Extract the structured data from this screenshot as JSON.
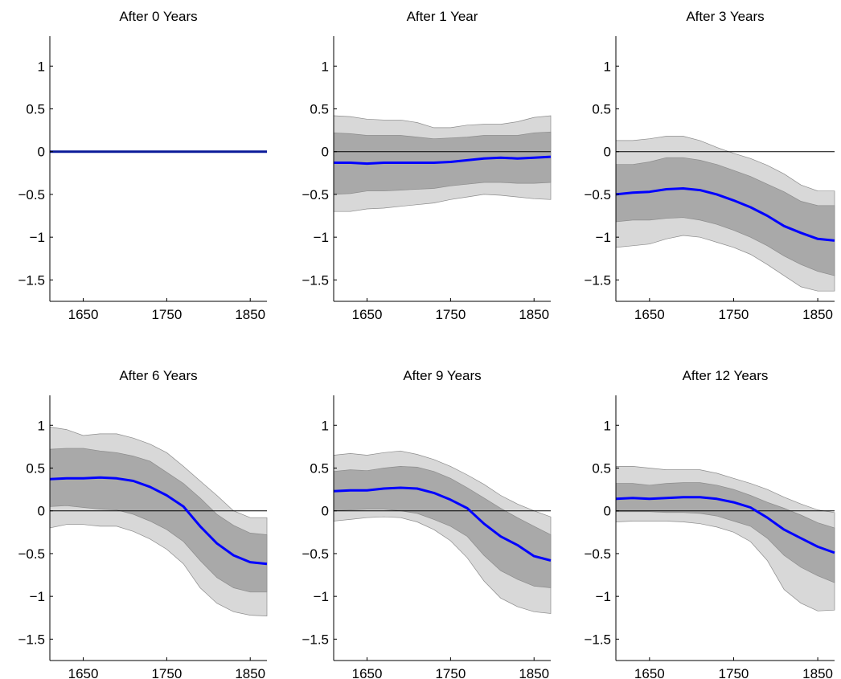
{
  "chart_data": [
    {
      "type": "area",
      "title": "After 0 Years",
      "xlim": [
        1610,
        1870
      ],
      "ylim": [
        -1.75,
        1.35
      ],
      "yticks": [
        -1.5,
        -1,
        -0.5,
        0,
        0.5,
        1
      ],
      "ytick_labels": [
        "−1.5",
        "−1",
        "−0.5",
        "0",
        "0.5",
        "1"
      ],
      "xticks": [
        1650,
        1750,
        1850
      ],
      "xtick_labels": [
        "1650",
        "1750",
        "1850"
      ],
      "zero_line": false,
      "colors": {
        "median": "#0000ff",
        "inner_band": "#a9a9a9",
        "outer_band": "#d8d8d8",
        "zero_line": "#000000"
      },
      "x": [
        1610,
        1870
      ],
      "median": [
        0,
        0
      ],
      "inner_lower": [
        0,
        0
      ],
      "inner_upper": [
        0,
        0
      ],
      "outer_lower": [
        0,
        0
      ],
      "outer_upper": [
        0,
        0
      ]
    },
    {
      "type": "area",
      "title": "After 1 Year",
      "xlim": [
        1610,
        1870
      ],
      "ylim": [
        -1.75,
        1.35
      ],
      "yticks": [
        -1.5,
        -1,
        -0.5,
        0,
        0.5,
        1
      ],
      "ytick_labels": [
        "−1.5",
        "−1",
        "−0.5",
        "0",
        "0.5",
        "1"
      ],
      "xticks": [
        1650,
        1750,
        1850
      ],
      "xtick_labels": [
        "1650",
        "1750",
        "1850"
      ],
      "zero_line": true,
      "colors": {
        "median": "#0000ff",
        "inner_band": "#a9a9a9",
        "outer_band": "#d8d8d8",
        "zero_line": "#000000"
      },
      "x": [
        1610,
        1630,
        1650,
        1670,
        1690,
        1710,
        1730,
        1750,
        1770,
        1790,
        1810,
        1830,
        1850,
        1870
      ],
      "median": [
        -0.13,
        -0.13,
        -0.14,
        -0.13,
        -0.13,
        -0.13,
        -0.13,
        -0.12,
        -0.1,
        -0.08,
        -0.07,
        -0.08,
        -0.07,
        -0.06
      ],
      "inner_lower": [
        -0.5,
        -0.49,
        -0.46,
        -0.46,
        -0.45,
        -0.44,
        -0.43,
        -0.4,
        -0.38,
        -0.36,
        -0.36,
        -0.37,
        -0.37,
        -0.36
      ],
      "inner_upper": [
        0.22,
        0.21,
        0.19,
        0.19,
        0.19,
        0.17,
        0.15,
        0.16,
        0.17,
        0.19,
        0.19,
        0.19,
        0.22,
        0.23
      ],
      "outer_lower": [
        -0.7,
        -0.7,
        -0.67,
        -0.66,
        -0.64,
        -0.62,
        -0.6,
        -0.56,
        -0.53,
        -0.5,
        -0.51,
        -0.53,
        -0.55,
        -0.56
      ],
      "outer_upper": [
        0.42,
        0.41,
        0.38,
        0.37,
        0.37,
        0.34,
        0.28,
        0.28,
        0.31,
        0.32,
        0.32,
        0.35,
        0.4,
        0.42
      ]
    },
    {
      "type": "area",
      "title": "After 3 Years",
      "xlim": [
        1610,
        1870
      ],
      "ylim": [
        -1.75,
        1.35
      ],
      "yticks": [
        -1.5,
        -1,
        -0.5,
        0,
        0.5,
        1
      ],
      "ytick_labels": [
        "−1.5",
        "−1",
        "−0.5",
        "0",
        "0.5",
        "1"
      ],
      "xticks": [
        1650,
        1750,
        1850
      ],
      "xtick_labels": [
        "1650",
        "1750",
        "1850"
      ],
      "zero_line": true,
      "colors": {
        "median": "#0000ff",
        "inner_band": "#a9a9a9",
        "outer_band": "#d8d8d8",
        "zero_line": "#000000"
      },
      "x": [
        1610,
        1630,
        1650,
        1670,
        1690,
        1710,
        1730,
        1750,
        1770,
        1790,
        1810,
        1830,
        1850,
        1870
      ],
      "median": [
        -0.5,
        -0.48,
        -0.47,
        -0.44,
        -0.43,
        -0.45,
        -0.5,
        -0.57,
        -0.65,
        -0.75,
        -0.87,
        -0.95,
        -1.02,
        -1.04
      ],
      "inner_lower": [
        -0.82,
        -0.8,
        -0.8,
        -0.78,
        -0.77,
        -0.8,
        -0.85,
        -0.92,
        -1.0,
        -1.1,
        -1.22,
        -1.32,
        -1.4,
        -1.45
      ],
      "inner_upper": [
        -0.15,
        -0.15,
        -0.12,
        -0.07,
        -0.07,
        -0.1,
        -0.15,
        -0.22,
        -0.29,
        -0.38,
        -0.47,
        -0.58,
        -0.63,
        -0.63
      ],
      "outer_lower": [
        -1.12,
        -1.1,
        -1.08,
        -1.02,
        -0.98,
        -1.0,
        -1.06,
        -1.12,
        -1.2,
        -1.32,
        -1.45,
        -1.58,
        -1.63,
        -1.63
      ],
      "outer_upper": [
        0.13,
        0.13,
        0.15,
        0.18,
        0.18,
        0.13,
        0.05,
        -0.02,
        -0.08,
        -0.16,
        -0.26,
        -0.39,
        -0.46,
        -0.46
      ]
    },
    {
      "type": "area",
      "title": "After 6 Years",
      "xlim": [
        1610,
        1870
      ],
      "ylim": [
        -1.75,
        1.35
      ],
      "yticks": [
        -1.5,
        -1,
        -0.5,
        0,
        0.5,
        1
      ],
      "ytick_labels": [
        "−1.5",
        "−1",
        "−0.5",
        "0",
        "0.5",
        "1"
      ],
      "xticks": [
        1650,
        1750,
        1850
      ],
      "xtick_labels": [
        "1650",
        "1750",
        "1850"
      ],
      "zero_line": true,
      "colors": {
        "median": "#0000ff",
        "inner_band": "#a9a9a9",
        "outer_band": "#d8d8d8",
        "zero_line": "#000000"
      },
      "x": [
        1610,
        1630,
        1650,
        1670,
        1690,
        1710,
        1730,
        1750,
        1770,
        1790,
        1810,
        1830,
        1850,
        1870
      ],
      "median": [
        0.37,
        0.38,
        0.38,
        0.39,
        0.38,
        0.35,
        0.28,
        0.18,
        0.05,
        -0.18,
        -0.38,
        -0.52,
        -0.6,
        -0.62
      ],
      "inner_lower": [
        0.05,
        0.06,
        0.04,
        0.02,
        0.01,
        -0.04,
        -0.12,
        -0.22,
        -0.36,
        -0.58,
        -0.78,
        -0.9,
        -0.95,
        -0.95
      ],
      "inner_upper": [
        0.72,
        0.73,
        0.73,
        0.7,
        0.68,
        0.64,
        0.58,
        0.45,
        0.32,
        0.15,
        -0.04,
        -0.17,
        -0.26,
        -0.28
      ],
      "outer_lower": [
        -0.2,
        -0.16,
        -0.16,
        -0.18,
        -0.18,
        -0.24,
        -0.33,
        -0.45,
        -0.62,
        -0.9,
        -1.08,
        -1.18,
        -1.22,
        -1.23
      ],
      "outer_upper": [
        0.98,
        0.95,
        0.88,
        0.9,
        0.9,
        0.85,
        0.78,
        0.68,
        0.52,
        0.35,
        0.18,
        0.0,
        -0.08,
        -0.08
      ]
    },
    {
      "type": "area",
      "title": "After 9 Years",
      "xlim": [
        1610,
        1870
      ],
      "ylim": [
        -1.75,
        1.35
      ],
      "yticks": [
        -1.5,
        -1,
        -0.5,
        0,
        0.5,
        1
      ],
      "ytick_labels": [
        "−1.5",
        "−1",
        "−0.5",
        "0",
        "0.5",
        "1"
      ],
      "xticks": [
        1650,
        1750,
        1850
      ],
      "xtick_labels": [
        "1650",
        "1750",
        "1850"
      ],
      "zero_line": true,
      "colors": {
        "median": "#0000ff",
        "inner_band": "#a9a9a9",
        "outer_band": "#d8d8d8",
        "zero_line": "#000000"
      },
      "x": [
        1610,
        1630,
        1650,
        1670,
        1690,
        1710,
        1730,
        1750,
        1770,
        1790,
        1810,
        1830,
        1850,
        1870
      ],
      "median": [
        0.23,
        0.24,
        0.24,
        0.26,
        0.27,
        0.26,
        0.21,
        0.13,
        0.03,
        -0.15,
        -0.3,
        -0.4,
        -0.53,
        -0.58
      ],
      "inner_lower": [
        0.0,
        0.01,
        0.02,
        0.02,
        0.0,
        -0.03,
        -0.1,
        -0.18,
        -0.3,
        -0.52,
        -0.7,
        -0.8,
        -0.88,
        -0.9
      ],
      "inner_upper": [
        0.46,
        0.48,
        0.47,
        0.5,
        0.52,
        0.51,
        0.46,
        0.38,
        0.27,
        0.15,
        0.03,
        -0.08,
        -0.18,
        -0.28
      ],
      "outer_lower": [
        -0.12,
        -0.1,
        -0.08,
        -0.07,
        -0.08,
        -0.13,
        -0.22,
        -0.35,
        -0.55,
        -0.82,
        -1.02,
        -1.12,
        -1.18,
        -1.2
      ],
      "outer_upper": [
        0.65,
        0.67,
        0.65,
        0.68,
        0.7,
        0.66,
        0.6,
        0.52,
        0.42,
        0.31,
        0.18,
        0.08,
        0.0,
        -0.07
      ]
    },
    {
      "type": "area",
      "title": "After 12 Years",
      "xlim": [
        1610,
        1870
      ],
      "ylim": [
        -1.75,
        1.35
      ],
      "yticks": [
        -1.5,
        -1,
        -0.5,
        0,
        0.5,
        1
      ],
      "ytick_labels": [
        "−1.5",
        "−1",
        "−0.5",
        "0",
        "0.5",
        "1"
      ],
      "xticks": [
        1650,
        1750,
        1850
      ],
      "xtick_labels": [
        "1650",
        "1750",
        "1850"
      ],
      "zero_line": true,
      "colors": {
        "median": "#0000ff",
        "inner_band": "#a9a9a9",
        "outer_band": "#d8d8d8",
        "zero_line": "#000000"
      },
      "x": [
        1610,
        1630,
        1650,
        1670,
        1690,
        1710,
        1730,
        1750,
        1770,
        1790,
        1810,
        1830,
        1850,
        1870
      ],
      "median": [
        0.14,
        0.15,
        0.14,
        0.15,
        0.16,
        0.16,
        0.14,
        0.1,
        0.04,
        -0.08,
        -0.22,
        -0.32,
        -0.42,
        -0.49
      ],
      "inner_lower": [
        -0.01,
        -0.01,
        -0.01,
        -0.02,
        -0.02,
        -0.03,
        -0.06,
        -0.12,
        -0.18,
        -0.32,
        -0.52,
        -0.66,
        -0.76,
        -0.84
      ],
      "inner_upper": [
        0.32,
        0.32,
        0.3,
        0.32,
        0.33,
        0.33,
        0.3,
        0.25,
        0.18,
        0.1,
        0.03,
        -0.05,
        -0.14,
        -0.2
      ],
      "outer_lower": [
        -0.13,
        -0.12,
        -0.12,
        -0.12,
        -0.13,
        -0.15,
        -0.19,
        -0.25,
        -0.36,
        -0.58,
        -0.92,
        -1.08,
        -1.17,
        -1.16
      ],
      "outer_upper": [
        0.52,
        0.52,
        0.5,
        0.48,
        0.48,
        0.48,
        0.44,
        0.38,
        0.32,
        0.25,
        0.16,
        0.08,
        0.01,
        -0.02
      ]
    }
  ]
}
